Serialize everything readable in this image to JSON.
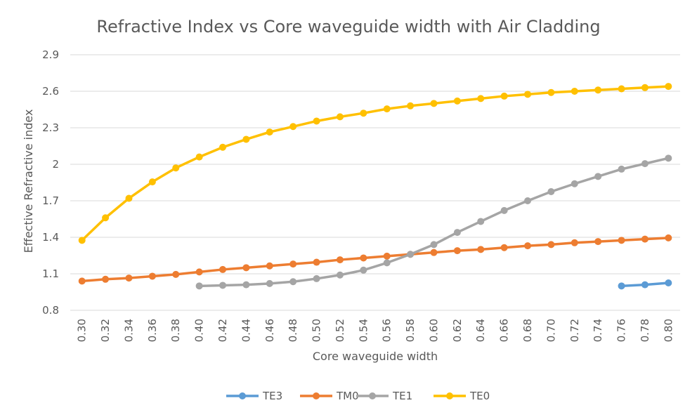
{
  "chart_data": {
    "type": "line",
    "title": "Refractive Index vs Core waveguide width with Air Cladding",
    "xlabel": "Core waveguide width",
    "ylabel": "Effective Refractive index",
    "ylim": [
      0.8,
      2.9
    ],
    "yticks": [
      "0.8",
      "1.1",
      "1.4",
      "1.7",
      "2",
      "2.3",
      "2.6",
      "2.9"
    ],
    "grid": true,
    "legend_position": "bottom",
    "categories": [
      "0.30",
      "0.32",
      "0.34",
      "0.36",
      "0.38",
      "0.40",
      "0.42",
      "0.44",
      "0.46",
      "0.48",
      "0.50",
      "0.52",
      "0.54",
      "0.56",
      "0.58",
      "0.60",
      "0.62",
      "0.64",
      "0.66",
      "0.68",
      "0.70",
      "0.72",
      "0.74",
      "0.76",
      "0.78",
      "0.80"
    ],
    "series": [
      {
        "name": "TE3",
        "color": "#5B9BD5",
        "values": [
          null,
          null,
          null,
          null,
          null,
          null,
          null,
          null,
          null,
          null,
          null,
          null,
          null,
          null,
          null,
          null,
          null,
          null,
          null,
          null,
          null,
          null,
          null,
          1.0,
          1.01,
          1.025
        ]
      },
      {
        "name": "TM0",
        "color": "#ED7D31",
        "values": [
          1.04,
          1.055,
          1.065,
          1.08,
          1.095,
          1.115,
          1.135,
          1.15,
          1.165,
          1.18,
          1.195,
          1.215,
          1.23,
          1.245,
          1.26,
          1.275,
          1.29,
          1.3,
          1.315,
          1.33,
          1.34,
          1.355,
          1.365,
          1.375,
          1.385,
          1.395
        ]
      },
      {
        "name": "TE1",
        "color": "#A5A5A5",
        "values": [
          null,
          null,
          null,
          null,
          null,
          1.0,
          1.005,
          1.01,
          1.02,
          1.035,
          1.06,
          1.09,
          1.13,
          1.19,
          1.26,
          1.34,
          1.44,
          1.53,
          1.62,
          1.7,
          1.775,
          1.84,
          1.9,
          1.96,
          2.005,
          2.05
        ]
      },
      {
        "name": "TE0",
        "color": "#FFC000",
        "values": [
          1.375,
          1.56,
          1.72,
          1.855,
          1.97,
          2.06,
          2.14,
          2.205,
          2.265,
          2.31,
          2.355,
          2.39,
          2.42,
          2.455,
          2.48,
          2.5,
          2.52,
          2.54,
          2.56,
          2.575,
          2.59,
          2.6,
          2.61,
          2.62,
          2.63,
          2.64
        ]
      }
    ]
  }
}
